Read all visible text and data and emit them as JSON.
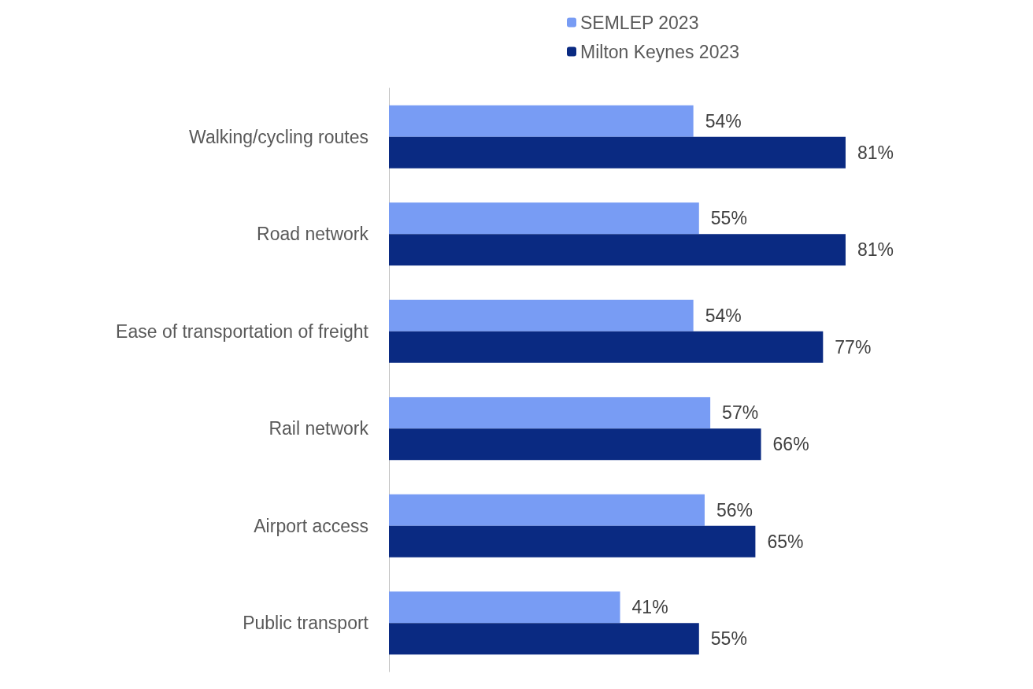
{
  "chart_data": {
    "type": "bar",
    "orientation": "horizontal",
    "categories": [
      "Walking/cycling routes",
      "Road network",
      "Ease of transportation of freight",
      "Rail network",
      "Airport access",
      "Public transport"
    ],
    "series": [
      {
        "name": "SEMLEP 2023",
        "color": "#789cf4",
        "values": [
          54,
          55,
          54,
          57,
          56,
          41
        ],
        "value_labels": [
          "54%",
          "55%",
          "54%",
          "57%",
          "56%",
          "41%"
        ]
      },
      {
        "name": "Milton Keynes 2023",
        "color": "#0a2a82",
        "values": [
          81,
          81,
          77,
          66,
          65,
          55
        ],
        "value_labels": [
          "81%",
          "81%",
          "77%",
          "66%",
          "65%",
          "55%"
        ]
      }
    ],
    "legend": "top",
    "grid": false
  }
}
